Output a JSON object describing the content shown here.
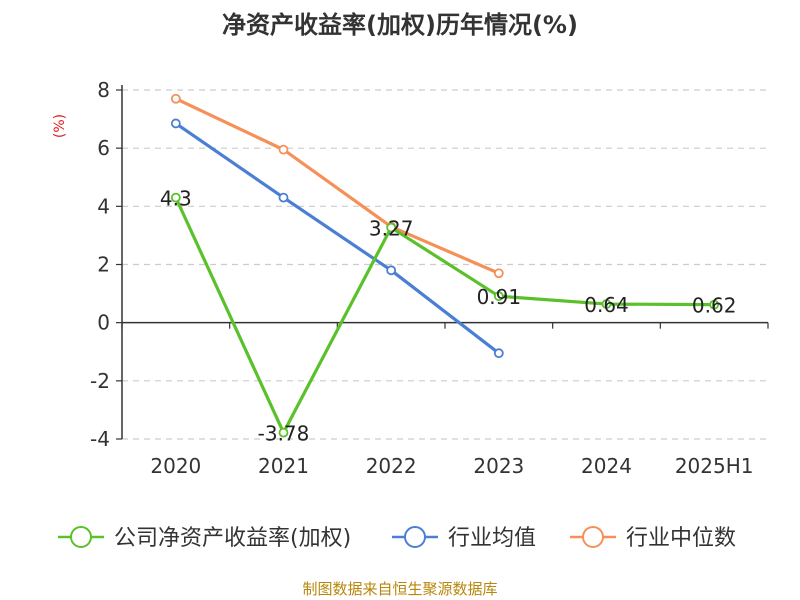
{
  "chart_data": {
    "type": "line",
    "title": "净资产收益率(加权)历年情况(%)",
    "ylabel": "(%)",
    "xlabel": "",
    "categories": [
      "2020",
      "2021",
      "2022",
      "2023",
      "2024",
      "2025H1"
    ],
    "ylim": [
      -4,
      8
    ],
    "yticks": [
      8,
      6,
      4,
      2,
      0,
      -2,
      -4
    ],
    "grid": true,
    "legend_position": "bottom",
    "series": [
      {
        "name": "公司净资产收益率(加权)",
        "color": "#5ac12a",
        "values": [
          4.3,
          -3.78,
          3.27,
          0.91,
          0.64,
          0.62
        ],
        "labels": [
          "4.3",
          "-3.78",
          "3.27",
          "0.91",
          "0.64",
          "0.62"
        ]
      },
      {
        "name": "行业均值",
        "color": "#4a7fd4",
        "values": [
          6.85,
          4.3,
          1.8,
          -1.05,
          null,
          null
        ]
      },
      {
        "name": "行业中位数",
        "color": "#f59158",
        "values": [
          7.7,
          5.95,
          3.3,
          1.7,
          null,
          null
        ]
      }
    ]
  },
  "footer": {
    "source": "制图数据来自恒生聚源数据库"
  }
}
